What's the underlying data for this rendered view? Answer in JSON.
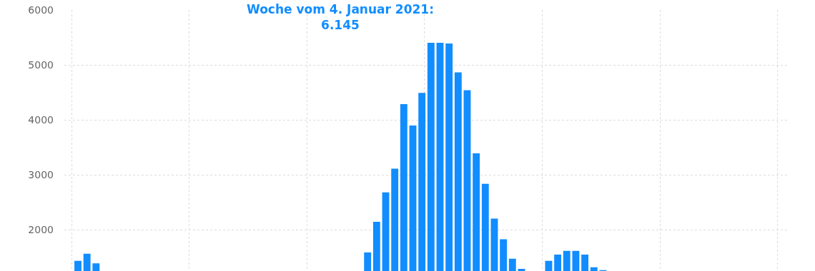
{
  "chart_data": {
    "type": "bar",
    "annotations": [
      "Woche vom 4. Januar 2021:\n6.145"
    ],
    "categories": [
      null,
      null,
      null,
      null,
      null,
      null,
      null,
      null,
      null,
      null,
      null,
      null,
      null,
      null,
      null,
      null,
      null,
      null,
      null,
      null,
      null,
      null,
      null,
      null,
      null,
      null,
      null,
      null,
      null,
      null,
      null,
      null,
      null,
      null,
      null,
      null,
      null,
      null,
      null,
      null,
      null,
      null,
      null,
      null,
      null,
      null,
      null,
      null,
      null,
      null,
      null,
      null,
      null,
      null,
      null,
      null,
      null,
      null,
      null,
      null,
      null,
      null,
      null,
      null,
      null,
      null,
      null,
      null,
      null,
      null,
      null,
      null,
      null,
      null,
      null,
      null,
      null,
      null,
      null,
      null
    ],
    "values": [
      null,
      1435,
      1564,
      1388,
      null,
      null,
      null,
      null,
      null,
      null,
      null,
      null,
      null,
      null,
      null,
      null,
      null,
      null,
      null,
      null,
      null,
      null,
      null,
      null,
      null,
      null,
      null,
      null,
      null,
      null,
      null,
      null,
      null,
      1586,
      2144,
      2680,
      3112,
      4288,
      3899,
      4491,
      5403,
      5403,
      5390,
      4863,
      4539,
      3393,
      2835,
      2204,
      1828,
      1473,
      1288,
      null,
      null,
      1435,
      1547,
      1616,
      1616,
      1547,
      1318,
      1265,
      null,
      null,
      null,
      null,
      null,
      null,
      null,
      null,
      null,
      null,
      null,
      null,
      null,
      null,
      null,
      null,
      null,
      null,
      null,
      null
    ],
    "color": "#118dff",
    "ylim": [
      1250,
      6000
    ],
    "yticks": [
      2000,
      3000,
      4000,
      5000,
      6000
    ],
    "grid": true
  }
}
